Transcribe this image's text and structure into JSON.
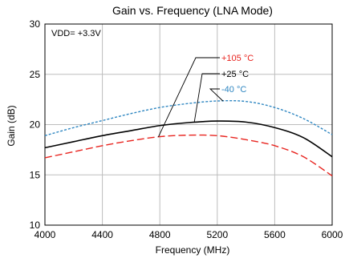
{
  "chart_data": {
    "type": "line",
    "title": "Gain vs. Frequency (LNA Mode)",
    "xlabel": "Frequency (MHz)",
    "ylabel": "Gain (dB)",
    "xlim": [
      4000,
      6000
    ],
    "ylim": [
      10,
      30
    ],
    "x_ticks": [
      4000,
      4400,
      4800,
      5200,
      5600,
      6000
    ],
    "y_ticks": [
      10,
      15,
      20,
      25,
      30
    ],
    "grid": true,
    "annotation": "VDD= +3.3V",
    "series": [
      {
        "name": "+105 °C",
        "color": "#e8241f",
        "dash": "long-dash",
        "x": [
          4000,
          4200,
          4400,
          4600,
          4800,
          5000,
          5200,
          5400,
          5600,
          5800,
          6000
        ],
        "y": [
          16.7,
          17.3,
          17.9,
          18.4,
          18.8,
          18.95,
          18.9,
          18.5,
          17.9,
          16.8,
          14.9
        ]
      },
      {
        "name": "+25 °C",
        "color": "#000000",
        "dash": "solid",
        "x": [
          4000,
          4200,
          4400,
          4600,
          4800,
          5000,
          5200,
          5400,
          5600,
          5800,
          6000
        ],
        "y": [
          17.7,
          18.3,
          18.9,
          19.4,
          19.9,
          20.2,
          20.35,
          20.25,
          19.7,
          18.7,
          16.8
        ]
      },
      {
        "name": "-40 °C",
        "color": "#2e86c1",
        "dash": "short-dash",
        "x": [
          4000,
          4200,
          4400,
          4600,
          4800,
          5000,
          5200,
          5400,
          5600,
          5800,
          6000
        ],
        "y": [
          18.9,
          19.7,
          20.4,
          21.1,
          21.7,
          22.1,
          22.35,
          22.3,
          21.7,
          20.6,
          19.0
        ]
      }
    ]
  }
}
